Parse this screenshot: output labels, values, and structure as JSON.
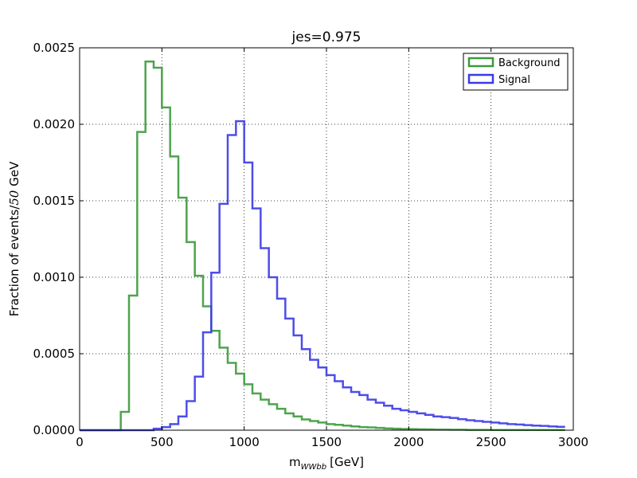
{
  "chart_data": {
    "type": "line",
    "title": "jes=0.975",
    "xlabel": "m",
    "xlabel_sub": "WWbb",
    "xlabel_unit": "[GeV]",
    "ylabel_main": "Fraction of events/",
    "ylabel_italic": "50",
    "ylabel_unit": " GeV",
    "xlim": [
      0,
      3000
    ],
    "ylim": [
      0,
      0.0025
    ],
    "xticks": [
      0,
      500,
      1000,
      1500,
      2000,
      2500,
      3000
    ],
    "xtick_labels": [
      "0",
      "500",
      "1000",
      "1500",
      "2000",
      "2500",
      "3000"
    ],
    "yticks": [
      0,
      0.0005,
      0.001,
      0.0015,
      0.002,
      0.0025
    ],
    "ytick_labels": [
      "0.0000",
      "0.0005",
      "0.0010",
      "0.0015",
      "0.0020",
      "0.0025"
    ],
    "grid": true,
    "legend_position": "top-right",
    "bin_edges": [
      0,
      50,
      100,
      150,
      200,
      250,
      300,
      350,
      400,
      450,
      500,
      550,
      600,
      650,
      700,
      750,
      800,
      850,
      900,
      950,
      1000,
      1050,
      1100,
      1150,
      1200,
      1250,
      1300,
      1350,
      1400,
      1450,
      1500,
      1550,
      1600,
      1650,
      1700,
      1750,
      1800,
      1850,
      1900,
      1950,
      2000,
      2050,
      2100,
      2150,
      2200,
      2250,
      2300,
      2350,
      2400,
      2450,
      2500,
      2550,
      2600,
      2650,
      2700,
      2750,
      2800,
      2850,
      2900,
      2950
    ],
    "series": [
      {
        "name": "Background",
        "color": "#3a9a3a",
        "values": [
          0,
          0,
          0,
          0,
          0,
          0.00012,
          0.00088,
          0.00195,
          0.00241,
          0.00237,
          0.00211,
          0.00179,
          0.00152,
          0.00123,
          0.00101,
          0.00081,
          0.00065,
          0.00054,
          0.00044,
          0.00037,
          0.0003,
          0.00024,
          0.0002,
          0.00017,
          0.00014,
          0.00011,
          9e-05,
          7e-05,
          6e-05,
          5e-05,
          4e-05,
          3.5e-05,
          3e-05,
          2.5e-05,
          2e-05,
          1.8e-05,
          1.5e-05,
          1.2e-05,
          1e-05,
          8e-06,
          7e-06,
          6e-06,
          5e-06,
          4e-06,
          4e-06,
          3e-06,
          3e-06,
          2e-06,
          2e-06,
          2e-06,
          1e-06,
          1e-06,
          1e-06,
          1e-06,
          1e-06,
          1e-06,
          1e-06,
          1e-06,
          1e-06
        ]
      },
      {
        "name": "Signal",
        "color": "#3a3ae8",
        "values": [
          0,
          0,
          0,
          0,
          0,
          0,
          0,
          0,
          0,
          1e-05,
          2e-05,
          4e-05,
          9e-05,
          0.00019,
          0.00035,
          0.00064,
          0.00103,
          0.00148,
          0.00193,
          0.00202,
          0.00175,
          0.00145,
          0.00119,
          0.001,
          0.00086,
          0.00073,
          0.00062,
          0.00053,
          0.00046,
          0.00041,
          0.00036,
          0.00032,
          0.00028,
          0.00025,
          0.00023,
          0.0002,
          0.00018,
          0.00016,
          0.00014,
          0.00013,
          0.00012,
          0.00011,
          0.0001,
          9e-05,
          8.5e-05,
          8e-05,
          7.2e-05,
          6.5e-05,
          6e-05,
          5.5e-05,
          5e-05,
          4.5e-05,
          4e-05,
          3.7e-05,
          3.3e-05,
          3e-05,
          2.8e-05,
          2.5e-05,
          2.2e-05
        ]
      }
    ]
  }
}
